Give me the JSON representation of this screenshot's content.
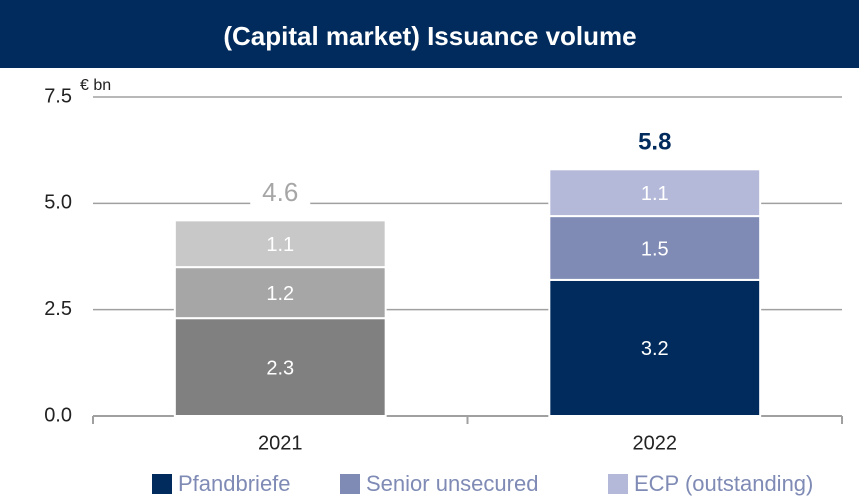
{
  "chart_data": {
    "type": "stacked_bar",
    "title": "(Capital market) Issuance volume",
    "y_label": "€ bn",
    "categories": [
      "2021",
      "2022"
    ],
    "series": [
      {
        "name": "Pfandbriefe",
        "color": "#002b5c",
        "colors": [
          "#808080",
          "#002b5c"
        ],
        "values": [
          2.3,
          3.2
        ]
      },
      {
        "name": "Senior unsecured",
        "color": "#7f8bb5",
        "colors": [
          "#a6a6a6",
          "#7f8bb5"
        ],
        "values": [
          1.2,
          1.5
        ]
      },
      {
        "name": "ECP (outstanding)",
        "color": "#b4b9d9",
        "colors": [
          "#c8c8c8",
          "#b4b9d9"
        ],
        "values": [
          1.1,
          1.1
        ]
      }
    ],
    "totals": [
      4.6,
      5.8
    ],
    "total_colors": [
      "#a6a6a6",
      "#002b5c"
    ],
    "ylim": [
      0,
      7.5
    ],
    "yticks": [
      {
        "value": 0,
        "label": "0.0"
      },
      2.5,
      {
        "value": 5,
        "label": "5.0"
      },
      7.5
    ],
    "grid": true
  }
}
